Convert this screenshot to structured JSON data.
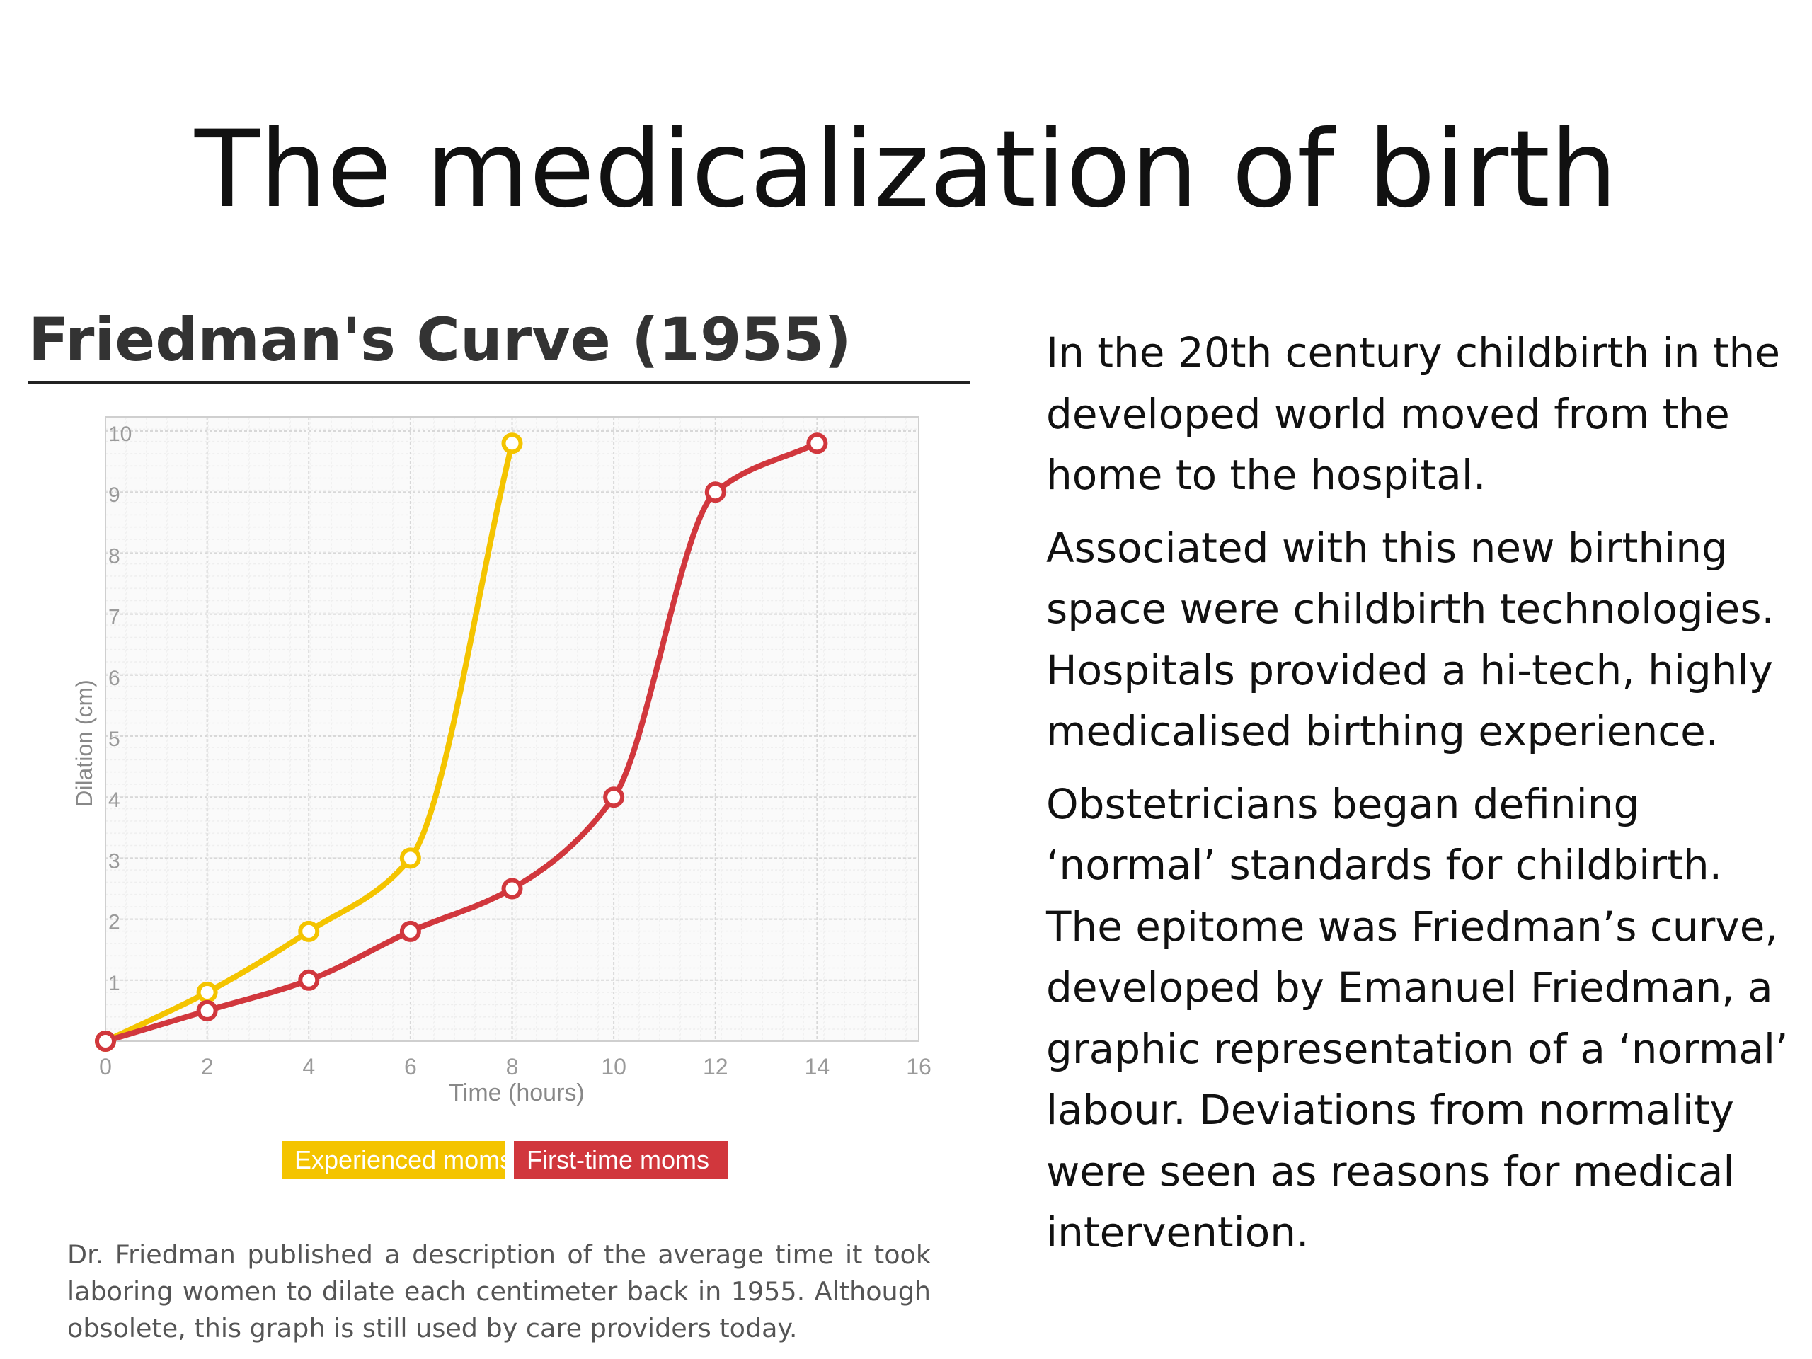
{
  "slide": {
    "title": "The medicalization of birth",
    "paragraphs": [
      "In the 20th century childbirth in the developed world moved from the home to the hospital.",
      "Associated with this new birthing space were childbirth technologies. Hospitals provided a hi-tech, highly medicalised birthing experience.",
      "Obstetricians began defining ‘normal’ standards for childbirth. The epitome was Friedman’s curve, developed by Emanuel Friedman, a graphic representation of a ‘normal’ labour. Deviations from normality were seen as reasons for medical intervention."
    ]
  },
  "chart_heading": "Friedman's Curve (1955)",
  "chart_caption": "Dr. Friedman published a description of the average time it took laboring women to dilate each centimeter back in 1955. Although obsolete, this graph is still used by care providers today.",
  "chart_data": {
    "type": "line",
    "xlabel": "Time (hours)",
    "ylabel": "Dilation (cm)",
    "xlim": [
      0,
      16
    ],
    "ylim": [
      0,
      10
    ],
    "x_ticks": [
      0,
      2,
      4,
      6,
      8,
      10,
      12,
      14,
      16
    ],
    "y_ticks": [
      1,
      2,
      3,
      4,
      5,
      6,
      7,
      8,
      9,
      10
    ],
    "grid": true,
    "legend_position": "bottom-center",
    "series": [
      {
        "name": "Experienced moms",
        "color": "#f4c400",
        "x": [
          0,
          2,
          4,
          6,
          8
        ],
        "y": [
          0,
          0.8,
          1.8,
          3,
          9.8
        ]
      },
      {
        "name": "First-time moms",
        "color": "#d1373d",
        "x": [
          0,
          2,
          4,
          6,
          8,
          10,
          12,
          14
        ],
        "y": [
          0,
          0.5,
          1,
          1.8,
          2.5,
          4,
          9,
          9.8
        ]
      }
    ]
  }
}
